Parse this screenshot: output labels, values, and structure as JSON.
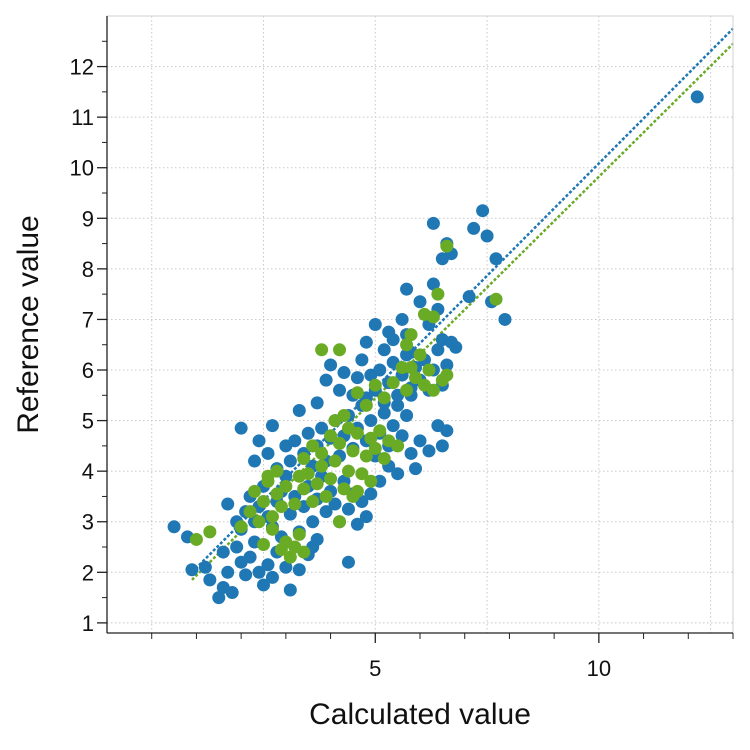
{
  "chart_data": {
    "type": "scatter",
    "title": "",
    "xlabel": "Calculated value",
    "ylabel": "Reference value",
    "xlim": [
      -1,
      13
    ],
    "ylim": [
      0.8,
      13
    ],
    "x_ticks": [
      5,
      10
    ],
    "y_ticks": [
      1,
      2,
      3,
      4,
      5,
      6,
      7,
      8,
      9,
      10,
      11,
      12
    ],
    "grid": true,
    "legend": "none",
    "colors": {
      "train": "#1f77b4",
      "test": "#6aab26"
    },
    "series": [
      {
        "color": "#1f77b4",
        "points": [
          [
            0.5,
            2.9
          ],
          [
            0.8,
            2.7
          ],
          [
            0.9,
            2.05
          ],
          [
            1.2,
            2.1
          ],
          [
            1.3,
            1.85
          ],
          [
            1.5,
            1.5
          ],
          [
            1.6,
            1.7
          ],
          [
            1.7,
            2.0
          ],
          [
            1.8,
            1.6
          ],
          [
            1.6,
            2.4
          ],
          [
            1.9,
            2.5
          ],
          [
            2.0,
            2.2
          ],
          [
            2.1,
            1.95
          ],
          [
            2.2,
            2.3
          ],
          [
            2.3,
            2.6
          ],
          [
            2.4,
            2.0
          ],
          [
            2.5,
            1.75
          ],
          [
            2.6,
            2.15
          ],
          [
            2.7,
            1.9
          ],
          [
            2.8,
            2.4
          ],
          [
            2.9,
            2.7
          ],
          [
            3.0,
            2.1
          ],
          [
            3.1,
            1.65
          ],
          [
            3.3,
            2.05
          ],
          [
            3.5,
            2.35
          ],
          [
            3.6,
            2.5
          ],
          [
            3.7,
            2.65
          ],
          [
            1.7,
            3.35
          ],
          [
            1.9,
            3.0
          ],
          [
            2.0,
            2.85
          ],
          [
            2.1,
            3.2
          ],
          [
            2.2,
            3.5
          ],
          [
            2.3,
            3.0
          ],
          [
            2.4,
            3.3
          ],
          [
            2.5,
            3.7
          ],
          [
            2.6,
            3.1
          ],
          [
            2.7,
            2.9
          ],
          [
            2.8,
            3.4
          ],
          [
            2.9,
            3.6
          ],
          [
            3.0,
            3.9
          ],
          [
            3.1,
            3.15
          ],
          [
            3.2,
            3.5
          ],
          [
            3.3,
            2.8
          ],
          [
            3.4,
            3.3
          ],
          [
            3.5,
            3.7
          ],
          [
            3.6,
            3.0
          ],
          [
            3.7,
            3.45
          ],
          [
            3.8,
            3.9
          ],
          [
            3.9,
            3.2
          ],
          [
            4.0,
            3.6
          ],
          [
            4.1,
            3.35
          ],
          [
            4.2,
            3.0
          ],
          [
            4.3,
            3.8
          ],
          [
            4.4,
            3.25
          ],
          [
            4.5,
            3.55
          ],
          [
            4.6,
            2.95
          ],
          [
            4.7,
            3.4
          ],
          [
            4.8,
            3.1
          ],
          [
            2.0,
            4.85
          ],
          [
            2.3,
            4.2
          ],
          [
            2.4,
            4.6
          ],
          [
            2.6,
            4.35
          ],
          [
            2.7,
            4.9
          ],
          [
            2.8,
            4.05
          ],
          [
            3.0,
            4.5
          ],
          [
            3.1,
            4.2
          ],
          [
            3.2,
            4.6
          ],
          [
            3.3,
            5.2
          ],
          [
            3.4,
            4.35
          ],
          [
            3.5,
            4.75
          ],
          [
            3.6,
            4.1
          ],
          [
            3.7,
            4.5
          ],
          [
            3.8,
            4.85
          ],
          [
            3.9,
            4.2
          ],
          [
            4.0,
            4.65
          ],
          [
            4.1,
            5.0
          ],
          [
            4.2,
            4.3
          ],
          [
            4.3,
            4.7
          ],
          [
            4.4,
            5.1
          ],
          [
            4.5,
            4.45
          ],
          [
            4.6,
            4.85
          ],
          [
            4.7,
            5.3
          ],
          [
            4.8,
            4.6
          ],
          [
            4.9,
            5.0
          ],
          [
            5.0,
            4.3
          ],
          [
            5.1,
            4.75
          ],
          [
            5.2,
            5.15
          ],
          [
            5.3,
            4.5
          ],
          [
            5.4,
            4.9
          ],
          [
            5.5,
            5.3
          ],
          [
            5.6,
            4.7
          ],
          [
            5.7,
            5.1
          ],
          [
            5.8,
            5.5
          ],
          [
            3.7,
            5.35
          ],
          [
            3.9,
            5.8
          ],
          [
            4.0,
            6.1
          ],
          [
            4.2,
            5.6
          ],
          [
            4.3,
            5.95
          ],
          [
            4.5,
            5.5
          ],
          [
            4.6,
            5.85
          ],
          [
            4.7,
            6.2
          ],
          [
            4.8,
            5.45
          ],
          [
            4.9,
            5.9
          ],
          [
            5.0,
            5.6
          ],
          [
            5.1,
            6.0
          ],
          [
            5.2,
            5.35
          ],
          [
            5.3,
            5.75
          ],
          [
            5.4,
            6.15
          ],
          [
            5.5,
            5.5
          ],
          [
            5.6,
            5.9
          ],
          [
            5.7,
            6.3
          ],
          [
            5.8,
            5.65
          ],
          [
            5.9,
            6.05
          ],
          [
            6.0,
            5.8
          ],
          [
            6.1,
            6.2
          ],
          [
            6.2,
            5.6
          ],
          [
            6.3,
            6.0
          ],
          [
            6.4,
            6.4
          ],
          [
            6.5,
            5.7
          ],
          [
            6.6,
            6.1
          ],
          [
            4.8,
            6.55
          ],
          [
            5.0,
            6.9
          ],
          [
            5.2,
            6.4
          ],
          [
            5.3,
            6.75
          ],
          [
            5.4,
            6.6
          ],
          [
            5.6,
            7.0
          ],
          [
            5.7,
            6.7
          ],
          [
            5.8,
            6.35
          ],
          [
            6.0,
            7.35
          ],
          [
            6.2,
            6.9
          ],
          [
            6.4,
            7.2
          ],
          [
            6.5,
            6.6
          ],
          [
            6.7,
            6.55
          ],
          [
            6.8,
            6.45
          ],
          [
            4.4,
            2.2
          ],
          [
            5.3,
            4.1
          ],
          [
            5.5,
            3.95
          ],
          [
            5.8,
            4.35
          ],
          [
            6.0,
            4.6
          ],
          [
            6.2,
            4.4
          ],
          [
            6.4,
            4.9
          ],
          [
            6.5,
            4.5
          ],
          [
            6.6,
            4.8
          ],
          [
            5.9,
            4.05
          ],
          [
            5.1,
            3.8
          ],
          [
            4.9,
            3.55
          ],
          [
            5.7,
            7.6
          ],
          [
            6.3,
            8.9
          ],
          [
            6.6,
            8.5
          ],
          [
            6.7,
            8.3
          ],
          [
            6.5,
            8.2
          ],
          [
            7.2,
            8.8
          ],
          [
            7.4,
            9.15
          ],
          [
            7.5,
            8.65
          ],
          [
            7.6,
            7.35
          ],
          [
            7.7,
            8.2
          ],
          [
            7.9,
            7.0
          ],
          [
            7.1,
            7.45
          ],
          [
            6.3,
            7.7
          ],
          [
            12.2,
            11.4
          ]
        ]
      },
      {
        "color": "#6aab26",
        "points": [
          [
            1.0,
            2.65
          ],
          [
            1.3,
            2.8
          ],
          [
            2.0,
            2.9
          ],
          [
            2.2,
            3.2
          ],
          [
            2.3,
            3.6
          ],
          [
            2.4,
            3.0
          ],
          [
            2.5,
            3.4
          ],
          [
            2.6,
            3.8
          ],
          [
            2.7,
            3.1
          ],
          [
            2.8,
            3.55
          ],
          [
            2.9,
            2.45
          ],
          [
            3.0,
            2.6
          ],
          [
            3.1,
            2.3
          ],
          [
            3.2,
            2.5
          ],
          [
            3.3,
            2.75
          ],
          [
            3.4,
            2.4
          ],
          [
            2.5,
            2.55
          ],
          [
            2.7,
            2.85
          ],
          [
            2.6,
            3.9
          ],
          [
            2.8,
            4.0
          ],
          [
            3.0,
            3.7
          ],
          [
            3.2,
            3.35
          ],
          [
            3.3,
            3.9
          ],
          [
            3.4,
            3.65
          ],
          [
            3.5,
            3.95
          ],
          [
            3.6,
            3.4
          ],
          [
            3.7,
            3.75
          ],
          [
            3.8,
            4.1
          ],
          [
            3.9,
            3.5
          ],
          [
            4.0,
            3.85
          ],
          [
            4.1,
            4.2
          ],
          [
            4.2,
            4.55
          ],
          [
            4.3,
            3.65
          ],
          [
            4.4,
            4.0
          ],
          [
            4.5,
            4.4
          ],
          [
            4.6,
            4.75
          ],
          [
            4.7,
            3.95
          ],
          [
            4.8,
            4.3
          ],
          [
            4.9,
            4.65
          ],
          [
            5.0,
            4.45
          ],
          [
            5.1,
            4.8
          ],
          [
            5.2,
            4.25
          ],
          [
            5.3,
            4.6
          ],
          [
            5.5,
            4.5
          ],
          [
            3.4,
            4.25
          ],
          [
            3.6,
            4.5
          ],
          [
            3.8,
            4.35
          ],
          [
            4.0,
            4.7
          ],
          [
            4.1,
            5.0
          ],
          [
            4.3,
            5.1
          ],
          [
            4.4,
            4.85
          ],
          [
            4.6,
            5.55
          ],
          [
            4.8,
            5.3
          ],
          [
            5.0,
            5.7
          ],
          [
            5.2,
            5.45
          ],
          [
            5.4,
            5.75
          ],
          [
            5.7,
            5.6
          ],
          [
            5.8,
            6.05
          ],
          [
            5.9,
            5.85
          ],
          [
            6.0,
            6.3
          ],
          [
            6.1,
            5.7
          ],
          [
            6.2,
            6.0
          ],
          [
            6.3,
            5.6
          ],
          [
            6.5,
            5.8
          ],
          [
            6.6,
            5.9
          ],
          [
            3.8,
            6.4
          ],
          [
            4.2,
            6.4
          ],
          [
            5.6,
            6.05
          ],
          [
            5.7,
            6.5
          ],
          [
            5.8,
            6.7
          ],
          [
            6.1,
            7.1
          ],
          [
            6.3,
            7.05
          ],
          [
            6.4,
            7.5
          ],
          [
            6.6,
            8.45
          ],
          [
            7.7,
            7.4
          ],
          [
            4.2,
            3.0
          ],
          [
            4.5,
            3.5
          ],
          [
            4.9,
            3.8
          ],
          [
            4.6,
            3.6
          ],
          [
            2.9,
            3.3
          ]
        ]
      }
    ],
    "fit_lines": [
      {
        "color": "#1f77b4",
        "x": [
          0.9,
          13
        ],
        "y": [
          2.0,
          12.75
        ]
      },
      {
        "color": "#6aab26",
        "x": [
          0.9,
          13
        ],
        "y": [
          1.85,
          12.45
        ]
      }
    ]
  },
  "labels": {
    "x_ticks": [
      "5",
      "10"
    ],
    "y_ticks": [
      "1",
      "2",
      "3",
      "4",
      "5",
      "6",
      "7",
      "8",
      "9",
      "10",
      "11",
      "12"
    ]
  }
}
